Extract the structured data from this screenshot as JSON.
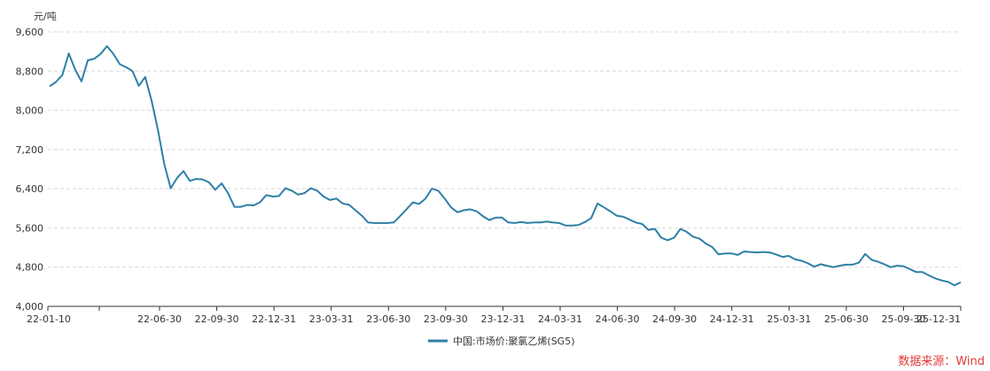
{
  "chart_data": {
    "type": "line",
    "unit_label": "元/吨",
    "ylim": [
      4000,
      9600
    ],
    "yticks": [
      4000,
      4800,
      5600,
      6400,
      7200,
      8000,
      8800,
      9600
    ],
    "ytick_labels": [
      "4,000",
      "4,800",
      "5,600",
      "6,400",
      "7,200",
      "8,000",
      "8,800",
      "9,600"
    ],
    "xtick_labels": [
      "22-01-10",
      "",
      "22-06-30",
      "22-09-30",
      "22-12-31",
      "23-03-31",
      "23-06-30",
      "23-09-30",
      "23-12-31",
      "24-03-31",
      "24-06-30",
      "24-09-30",
      "24-12-31",
      "25-03-31",
      "25-06-30",
      "25-09-30",
      "25-12-31"
    ],
    "grid": true,
    "legend_position": "bottom-center",
    "series": [
      {
        "name": "中国:市场价:聚氯乙烯(SG5)",
        "color": "#2e7fa6",
        "values": [
          8490,
          8580,
          8720,
          9160,
          8830,
          8590,
          9020,
          9050,
          9150,
          9310,
          9150,
          8940,
          8880,
          8800,
          8500,
          8680,
          8200,
          7600,
          6900,
          6410,
          6620,
          6760,
          6560,
          6600,
          6590,
          6530,
          6380,
          6510,
          6310,
          6030,
          6030,
          6070,
          6060,
          6120,
          6270,
          6240,
          6250,
          6410,
          6360,
          6280,
          6310,
          6410,
          6360,
          6240,
          6170,
          6200,
          6100,
          6070,
          5960,
          5850,
          5710,
          5700,
          5700,
          5700,
          5710,
          5840,
          5980,
          6120,
          6090,
          6200,
          6400,
          6360,
          6200,
          6020,
          5920,
          5960,
          5980,
          5940,
          5840,
          5760,
          5810,
          5810,
          5710,
          5700,
          5720,
          5700,
          5710,
          5710,
          5730,
          5710,
          5700,
          5650,
          5650,
          5660,
          5720,
          5800,
          6100,
          6020,
          5940,
          5850,
          5830,
          5770,
          5710,
          5680,
          5560,
          5580,
          5400,
          5350,
          5400,
          5580,
          5520,
          5420,
          5380,
          5280,
          5210,
          5060,
          5080,
          5080,
          5050,
          5120,
          5110,
          5100,
          5110,
          5100,
          5060,
          5010,
          5030,
          4960,
          4930,
          4880,
          4810,
          4860,
          4830,
          4800,
          4830,
          4850,
          4850,
          4890,
          5070,
          4950,
          4910,
          4860,
          4800,
          4830,
          4820,
          4760,
          4700,
          4700,
          4630,
          4570,
          4530,
          4500,
          4430,
          4490
        ]
      }
    ]
  },
  "source_label": "数据来源：Wind"
}
